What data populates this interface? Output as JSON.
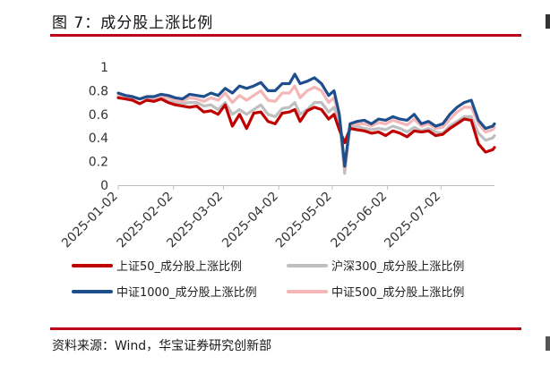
{
  "figure": {
    "title": "图 7：成分股上涨比例",
    "source": "资料来源：Wind，华宝证券研究创新部"
  },
  "chart_data": {
    "type": "line",
    "ylim": [
      0,
      1
    ],
    "yticks": [
      {
        "value": 0,
        "label": "0"
      },
      {
        "value": 0.2,
        "label": "0.2"
      },
      {
        "value": 0.4,
        "label": "0.4"
      },
      {
        "value": 0.6,
        "label": "0.6"
      },
      {
        "value": 0.8,
        "label": "0.8"
      },
      {
        "value": 1,
        "label": "1"
      }
    ],
    "x_range": [
      "2025-01-02",
      "2025-08-01"
    ],
    "xticks": [
      "2025-01-02",
      "2025-02-02",
      "2025-03-02",
      "2025-04-02",
      "2025-05-02",
      "2025-06-02",
      "2025-07-02"
    ],
    "grid": false,
    "legend_position": "bottom",
    "series": [
      {
        "name": "上证50_成分股上涨比例",
        "color": "#c00000",
        "points": [
          [
            "2025-01-02",
            0.74
          ],
          [
            "2025-01-06",
            0.73
          ],
          [
            "2025-01-10",
            0.72
          ],
          [
            "2025-01-14",
            0.69
          ],
          [
            "2025-01-18",
            0.72
          ],
          [
            "2025-01-22",
            0.71
          ],
          [
            "2025-01-26",
            0.73
          ],
          [
            "2025-01-30",
            0.7
          ],
          [
            "2025-02-03",
            0.68
          ],
          [
            "2025-02-07",
            0.67
          ],
          [
            "2025-02-11",
            0.66
          ],
          [
            "2025-02-15",
            0.67
          ],
          [
            "2025-02-19",
            0.62
          ],
          [
            "2025-02-23",
            0.63
          ],
          [
            "2025-02-27",
            0.6
          ],
          [
            "2025-03-03",
            0.68
          ],
          [
            "2025-03-07",
            0.5
          ],
          [
            "2025-03-11",
            0.6
          ],
          [
            "2025-03-15",
            0.48
          ],
          [
            "2025-03-19",
            0.61
          ],
          [
            "2025-03-23",
            0.62
          ],
          [
            "2025-03-27",
            0.54
          ],
          [
            "2025-03-31",
            0.52
          ],
          [
            "2025-04-04",
            0.61
          ],
          [
            "2025-04-08",
            0.62
          ],
          [
            "2025-04-11",
            0.64
          ],
          [
            "2025-04-14",
            0.54
          ],
          [
            "2025-04-18",
            0.63
          ],
          [
            "2025-04-22",
            0.66
          ],
          [
            "2025-04-26",
            0.64
          ],
          [
            "2025-04-30",
            0.56
          ],
          [
            "2025-05-03",
            0.6
          ],
          [
            "2025-05-06",
            0.47
          ],
          [
            "2025-05-09",
            0.36
          ],
          [
            "2025-05-12",
            0.48
          ],
          [
            "2025-05-16",
            0.47
          ],
          [
            "2025-05-20",
            0.46
          ],
          [
            "2025-05-24",
            0.44
          ],
          [
            "2025-05-28",
            0.45
          ],
          [
            "2025-06-01",
            0.42
          ],
          [
            "2025-06-05",
            0.46
          ],
          [
            "2025-06-09",
            0.44
          ],
          [
            "2025-06-13",
            0.41
          ],
          [
            "2025-06-17",
            0.46
          ],
          [
            "2025-06-21",
            0.45
          ],
          [
            "2025-06-25",
            0.46
          ],
          [
            "2025-06-29",
            0.42
          ],
          [
            "2025-07-03",
            0.43
          ],
          [
            "2025-07-07",
            0.48
          ],
          [
            "2025-07-11",
            0.52
          ],
          [
            "2025-07-15",
            0.56
          ],
          [
            "2025-07-19",
            0.55
          ],
          [
            "2025-07-23",
            0.35
          ],
          [
            "2025-07-27",
            0.28
          ],
          [
            "2025-07-31",
            0.3
          ],
          [
            "2025-08-01",
            0.32
          ]
        ]
      },
      {
        "name": "沪深300_成分股上涨比例",
        "color": "#bfbfbf",
        "points": [
          [
            "2025-01-02",
            0.75
          ],
          [
            "2025-01-06",
            0.74
          ],
          [
            "2025-01-10",
            0.74
          ],
          [
            "2025-01-14",
            0.73
          ],
          [
            "2025-01-18",
            0.74
          ],
          [
            "2025-01-22",
            0.73
          ],
          [
            "2025-01-26",
            0.74
          ],
          [
            "2025-01-30",
            0.71
          ],
          [
            "2025-02-03",
            0.7
          ],
          [
            "2025-02-07",
            0.69
          ],
          [
            "2025-02-11",
            0.7
          ],
          [
            "2025-02-15",
            0.7
          ],
          [
            "2025-02-19",
            0.67
          ],
          [
            "2025-02-23",
            0.68
          ],
          [
            "2025-02-27",
            0.64
          ],
          [
            "2025-03-03",
            0.7
          ],
          [
            "2025-03-07",
            0.6
          ],
          [
            "2025-03-11",
            0.64
          ],
          [
            "2025-03-15",
            0.6
          ],
          [
            "2025-03-19",
            0.64
          ],
          [
            "2025-03-23",
            0.68
          ],
          [
            "2025-03-27",
            0.6
          ],
          [
            "2025-03-31",
            0.58
          ],
          [
            "2025-04-04",
            0.65
          ],
          [
            "2025-04-08",
            0.66
          ],
          [
            "2025-04-11",
            0.7
          ],
          [
            "2025-04-14",
            0.6
          ],
          [
            "2025-04-18",
            0.64
          ],
          [
            "2025-04-22",
            0.7
          ],
          [
            "2025-04-26",
            0.7
          ],
          [
            "2025-04-30",
            0.62
          ],
          [
            "2025-05-03",
            0.66
          ],
          [
            "2025-05-06",
            0.54
          ],
          [
            "2025-05-09",
            0.1
          ],
          [
            "2025-05-12",
            0.5
          ],
          [
            "2025-05-16",
            0.5
          ],
          [
            "2025-05-20",
            0.48
          ],
          [
            "2025-05-24",
            0.47
          ],
          [
            "2025-05-28",
            0.48
          ],
          [
            "2025-06-01",
            0.47
          ],
          [
            "2025-06-05",
            0.5
          ],
          [
            "2025-06-09",
            0.48
          ],
          [
            "2025-06-13",
            0.45
          ],
          [
            "2025-06-17",
            0.49
          ],
          [
            "2025-06-21",
            0.46
          ],
          [
            "2025-06-25",
            0.48
          ],
          [
            "2025-06-29",
            0.45
          ],
          [
            "2025-07-03",
            0.44
          ],
          [
            "2025-07-07",
            0.5
          ],
          [
            "2025-07-11",
            0.54
          ],
          [
            "2025-07-15",
            0.58
          ],
          [
            "2025-07-19",
            0.58
          ],
          [
            "2025-07-23",
            0.44
          ],
          [
            "2025-07-27",
            0.38
          ],
          [
            "2025-07-31",
            0.4
          ],
          [
            "2025-08-01",
            0.42
          ]
        ]
      },
      {
        "name": "中证1000_成分股上涨比例",
        "color": "#1f4e8c",
        "points": [
          [
            "2025-01-02",
            0.78
          ],
          [
            "2025-01-06",
            0.76
          ],
          [
            "2025-01-10",
            0.75
          ],
          [
            "2025-01-14",
            0.73
          ],
          [
            "2025-01-18",
            0.75
          ],
          [
            "2025-01-22",
            0.75
          ],
          [
            "2025-01-26",
            0.77
          ],
          [
            "2025-01-30",
            0.76
          ],
          [
            "2025-02-03",
            0.74
          ],
          [
            "2025-02-07",
            0.73
          ],
          [
            "2025-02-11",
            0.77
          ],
          [
            "2025-02-15",
            0.76
          ],
          [
            "2025-02-19",
            0.75
          ],
          [
            "2025-02-23",
            0.78
          ],
          [
            "2025-02-27",
            0.76
          ],
          [
            "2025-03-03",
            0.82
          ],
          [
            "2025-03-07",
            0.78
          ],
          [
            "2025-03-11",
            0.84
          ],
          [
            "2025-03-15",
            0.82
          ],
          [
            "2025-03-19",
            0.84
          ],
          [
            "2025-03-23",
            0.87
          ],
          [
            "2025-03-27",
            0.8
          ],
          [
            "2025-03-31",
            0.8
          ],
          [
            "2025-04-04",
            0.86
          ],
          [
            "2025-04-08",
            0.86
          ],
          [
            "2025-04-11",
            0.94
          ],
          [
            "2025-04-14",
            0.86
          ],
          [
            "2025-04-18",
            0.88
          ],
          [
            "2025-04-22",
            0.91
          ],
          [
            "2025-04-26",
            0.86
          ],
          [
            "2025-04-30",
            0.76
          ],
          [
            "2025-05-03",
            0.8
          ],
          [
            "2025-05-06",
            0.6
          ],
          [
            "2025-05-09",
            0.16
          ],
          [
            "2025-05-12",
            0.52
          ],
          [
            "2025-05-16",
            0.54
          ],
          [
            "2025-05-20",
            0.55
          ],
          [
            "2025-05-24",
            0.52
          ],
          [
            "2025-05-28",
            0.56
          ],
          [
            "2025-06-01",
            0.55
          ],
          [
            "2025-06-05",
            0.58
          ],
          [
            "2025-06-09",
            0.56
          ],
          [
            "2025-06-13",
            0.55
          ],
          [
            "2025-06-17",
            0.6
          ],
          [
            "2025-06-21",
            0.52
          ],
          [
            "2025-06-25",
            0.54
          ],
          [
            "2025-06-29",
            0.5
          ],
          [
            "2025-07-03",
            0.52
          ],
          [
            "2025-07-07",
            0.6
          ],
          [
            "2025-07-11",
            0.66
          ],
          [
            "2025-07-15",
            0.7
          ],
          [
            "2025-07-19",
            0.72
          ],
          [
            "2025-07-23",
            0.55
          ],
          [
            "2025-07-27",
            0.48
          ],
          [
            "2025-07-31",
            0.5
          ],
          [
            "2025-08-01",
            0.52
          ]
        ]
      },
      {
        "name": "中证500_成分股上涨比例",
        "color": "#f4b6b6",
        "points": [
          [
            "2025-01-02",
            0.76
          ],
          [
            "2025-01-06",
            0.75
          ],
          [
            "2025-01-10",
            0.75
          ],
          [
            "2025-01-14",
            0.73
          ],
          [
            "2025-01-18",
            0.75
          ],
          [
            "2025-01-22",
            0.74
          ],
          [
            "2025-01-26",
            0.76
          ],
          [
            "2025-01-30",
            0.74
          ],
          [
            "2025-02-03",
            0.72
          ],
          [
            "2025-02-07",
            0.71
          ],
          [
            "2025-02-11",
            0.74
          ],
          [
            "2025-02-15",
            0.73
          ],
          [
            "2025-02-19",
            0.71
          ],
          [
            "2025-02-23",
            0.74
          ],
          [
            "2025-02-27",
            0.72
          ],
          [
            "2025-03-03",
            0.78
          ],
          [
            "2025-03-07",
            0.7
          ],
          [
            "2025-03-11",
            0.76
          ],
          [
            "2025-03-15",
            0.72
          ],
          [
            "2025-03-19",
            0.76
          ],
          [
            "2025-03-23",
            0.8
          ],
          [
            "2025-03-27",
            0.72
          ],
          [
            "2025-03-31",
            0.71
          ],
          [
            "2025-04-04",
            0.78
          ],
          [
            "2025-04-08",
            0.78
          ],
          [
            "2025-04-11",
            0.84
          ],
          [
            "2025-04-14",
            0.74
          ],
          [
            "2025-04-18",
            0.8
          ],
          [
            "2025-04-22",
            0.83
          ],
          [
            "2025-04-26",
            0.8
          ],
          [
            "2025-04-30",
            0.7
          ],
          [
            "2025-05-03",
            0.74
          ],
          [
            "2025-05-06",
            0.58
          ],
          [
            "2025-05-09",
            0.14
          ],
          [
            "2025-05-12",
            0.51
          ],
          [
            "2025-05-16",
            0.52
          ],
          [
            "2025-05-20",
            0.52
          ],
          [
            "2025-05-24",
            0.5
          ],
          [
            "2025-05-28",
            0.53
          ],
          [
            "2025-06-01",
            0.52
          ],
          [
            "2025-06-05",
            0.55
          ],
          [
            "2025-06-09",
            0.53
          ],
          [
            "2025-06-13",
            0.51
          ],
          [
            "2025-06-17",
            0.56
          ],
          [
            "2025-06-21",
            0.5
          ],
          [
            "2025-06-25",
            0.52
          ],
          [
            "2025-06-29",
            0.48
          ],
          [
            "2025-07-03",
            0.49
          ],
          [
            "2025-07-07",
            0.56
          ],
          [
            "2025-07-11",
            0.62
          ],
          [
            "2025-07-15",
            0.66
          ],
          [
            "2025-07-19",
            0.66
          ],
          [
            "2025-07-23",
            0.52
          ],
          [
            "2025-07-27",
            0.45
          ],
          [
            "2025-07-31",
            0.47
          ],
          [
            "2025-08-01",
            0.49
          ]
        ]
      }
    ]
  }
}
